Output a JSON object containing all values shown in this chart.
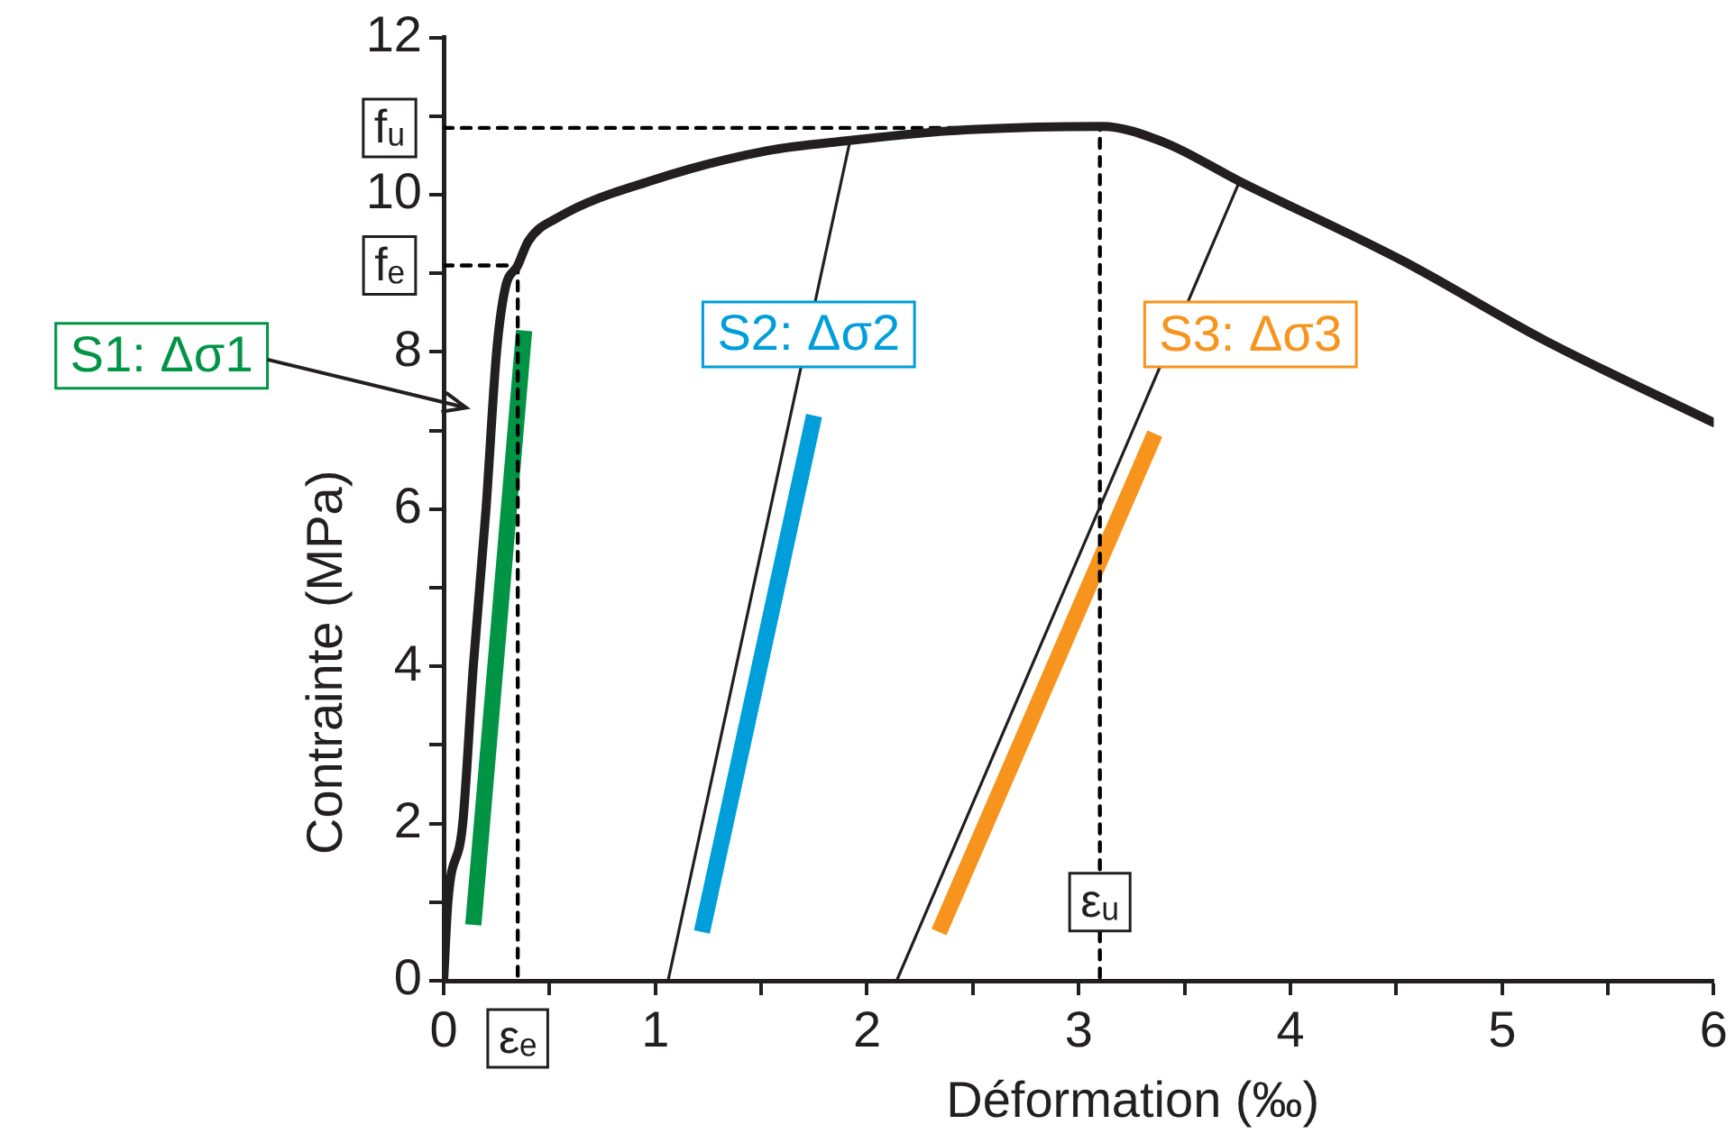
{
  "chart_data": {
    "type": "line",
    "xlabel": "Déformation (‰)",
    "ylabel": "Contrainte (MPa)",
    "xlim": [
      0,
      6
    ],
    "xticks": [
      0,
      {
        "value": 0.5,
        "label": null
      },
      1,
      {
        "value": 1.5,
        "label": null
      },
      2,
      {
        "value": 2.5,
        "label": null
      },
      3,
      {
        "value": 3.5,
        "label": null
      },
      4,
      {
        "value": 4.5,
        "label": null
      },
      5,
      {
        "value": 5.5,
        "label": null
      },
      6
    ],
    "ylim": [
      0,
      12
    ],
    "yticks": [
      0,
      {
        "value": 1,
        "label": null
      },
      2,
      {
        "value": 3,
        "label": null
      },
      4,
      {
        "value": 5,
        "label": null
      },
      6,
      {
        "value": 7,
        "label": null
      },
      8,
      {
        "value": 9,
        "label": null
      },
      10,
      {
        "value": 11,
        "label": null
      },
      12
    ],
    "grid": false,
    "legend": false,
    "marker": "none",
    "series": [
      {
        "type": "line",
        "color": "#231f20",
        "x": [
          0,
          0.02,
          0.09,
          0.14,
          0.2,
          0.25,
          0.29,
          0.35,
          0.4,
          0.54,
          0.97,
          1.53,
          1.92,
          2.38,
          2.8,
          3.11,
          3.4,
          3.76,
          4.53,
          5.2,
          6.0
        ],
        "values": [
          0,
          1,
          2,
          4,
          6,
          8,
          8.8,
          9.1,
          9.41,
          9.71,
          10.17,
          10.56,
          10.69,
          10.81,
          10.86,
          10.87,
          10.67,
          10.17,
          9.16,
          8.15,
          7.1
        ]
      },
      {
        "type": "line",
        "color": "#231f20",
        "x": [
          1.06,
          1.92
        ],
        "values": [
          0,
          10.69
        ]
      },
      {
        "type": "line",
        "color": "#231f20",
        "x": [
          2.14,
          3.76
        ],
        "values": [
          0,
          10.17
        ]
      },
      {
        "type": "line",
        "color": "#000000",
        "line_style": "dashed",
        "x": [
          0,
          0.35,
          0.35
        ],
        "values": [
          9.1,
          9.1,
          0
        ]
      },
      {
        "type": "line",
        "color": "#000000",
        "line_style": "dashed",
        "x": [
          0,
          3.1,
          3.1
        ],
        "values": [
          10.85,
          10.85,
          0
        ]
      },
      {
        "type": "line",
        "name": "S1: Δσ1",
        "color": "#009444",
        "x": [
          0.14,
          0.38
        ],
        "values": [
          0.71,
          8.27
        ]
      },
      {
        "type": "line",
        "name": "S2: Δσ2",
        "color": "#009fda",
        "x": [
          1.22,
          1.75
        ],
        "values": [
          0.62,
          7.19
        ]
      },
      {
        "type": "line",
        "name": "S3: Δσ3",
        "color": "#f7941d",
        "x": [
          2.34,
          3.36
        ],
        "values": [
          0.62,
          6.96
        ]
      }
    ],
    "annotations": [
      {
        "text": "fₑ",
        "x": 0,
        "y": 9.1
      },
      {
        "text": "fᵤ",
        "x": 0,
        "y": 10.85
      },
      {
        "text": "εₑ",
        "x": 0.35,
        "y": 0
      },
      {
        "text": "εᵤ",
        "x": 3.1,
        "y": 1
      }
    ]
  }
}
